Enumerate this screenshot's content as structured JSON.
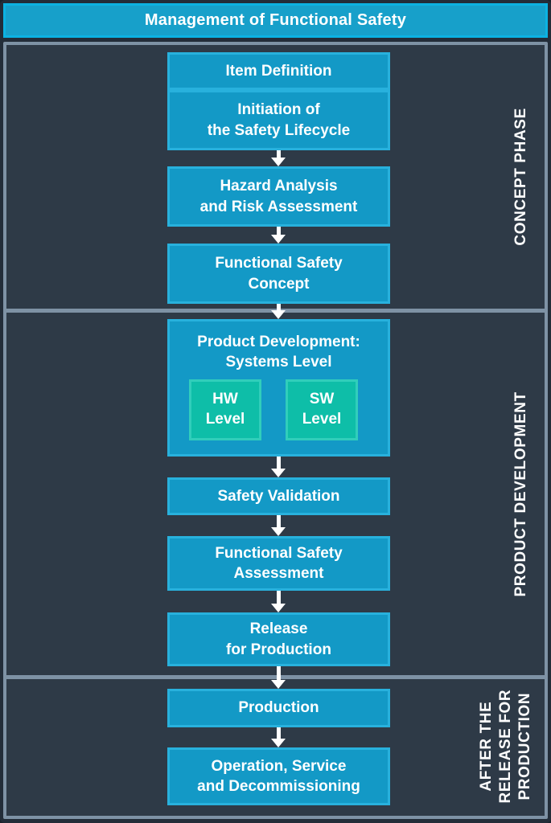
{
  "header": {
    "title": "Management of Functional Safety"
  },
  "phases": [
    {
      "label": "CONCEPT PHASE"
    },
    {
      "label": "PRODUCT DEVELOPMENT"
    },
    {
      "label": "AFTER THE\nRELEASE FOR\nPRODUCTION"
    }
  ],
  "flow": {
    "item_definition": "Item Definition",
    "initiation": "Initiation of\nthe Safety Lifecycle",
    "hazard_analysis": "Hazard Analysis\nand Risk Assessment",
    "functional_safety_concept": "Functional Safety\nConcept",
    "product_development": "Product Development:\nSystems Level",
    "hw_level": "HW\nLevel",
    "sw_level": "SW\nLevel",
    "safety_validation": "Safety Validation",
    "functional_safety_assessment": "Functional Safety\nAssessment",
    "release_for_production": "Release\nfor Production",
    "production": "Production",
    "operation": "Operation, Service\nand Decommissioning"
  },
  "colors": {
    "stage_background": "#232D39",
    "panel_background": "#2E3A47",
    "panel_border": "#7E92A5",
    "header_fill": "#17A0CA",
    "header_border": "#0CB2E2",
    "box_fill": "#1399C6",
    "box_border": "#28B1DD",
    "sub_box_fill": "#0EBEA8",
    "sub_box_border": "#31CEBB",
    "text": "#FFFFFF"
  }
}
